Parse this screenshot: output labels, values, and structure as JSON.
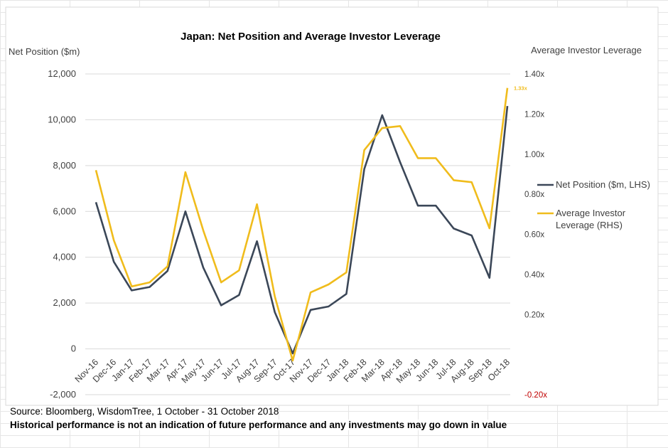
{
  "chart_data": {
    "type": "line",
    "title": "Japan: Net Position and Average Investor Leverage",
    "ylabel_left": "Net Position ($m)",
    "ylabel_right": "Average Investor Leverage",
    "ylim_left": [
      -2000,
      12000
    ],
    "ylim_right": [
      -0.2,
      1.4
    ],
    "yticks_left": [
      "12,000",
      "10,000",
      "8,000",
      "6,000",
      "4,000",
      "2,000",
      "0",
      "-2,000"
    ],
    "yticks_left_values": [
      12000,
      10000,
      8000,
      6000,
      4000,
      2000,
      0,
      -2000
    ],
    "yticks_right": [
      "1.40x",
      "1.20x",
      "1.00x",
      "0.80x",
      "0.60x",
      "0.40x",
      "0.20x",
      "-0.20x"
    ],
    "yticks_right_values": [
      1.4,
      1.2,
      1.0,
      0.8,
      0.6,
      0.4,
      0.2,
      -0.2
    ],
    "grid": true,
    "legend_position": "right",
    "categories": [
      "Nov-16",
      "Dec-16",
      "Jan-17",
      "Feb-17",
      "Mar-17",
      "Apr-17",
      "May-17",
      "Jun-17",
      "Jul-17",
      "Aug-17",
      "Sep-17",
      "Oct-17",
      "Nov-17",
      "Dec-17",
      "Jan-18",
      "Feb-18",
      "Mar-18",
      "Apr-18",
      "May-18",
      "Jun-18",
      "Jul-18",
      "Aug-18",
      "Sep-18",
      "Oct-18"
    ],
    "series": [
      {
        "name": "Net Position ($m, LHS)",
        "axis": "left",
        "color": "#3b4758",
        "values": [
          6400,
          3800,
          2550,
          2700,
          3400,
          6000,
          3550,
          1900,
          2350,
          4700,
          1600,
          -200,
          1700,
          1850,
          2400,
          7850,
          10200,
          8150,
          6250,
          6250,
          5250,
          4950,
          3100,
          10600
        ]
      },
      {
        "name": "Average Investor Leverage (RHS)",
        "axis": "right",
        "color": "#f0bc1c",
        "values": [
          0.92,
          0.57,
          0.34,
          0.36,
          0.44,
          0.91,
          0.62,
          0.36,
          0.42,
          0.75,
          0.29,
          -0.03,
          0.31,
          0.35,
          0.41,
          1.02,
          1.13,
          1.14,
          0.98,
          0.98,
          0.87,
          0.86,
          0.63,
          1.33
        ]
      }
    ],
    "legend_lines": [
      [
        "Net Position ($m, LHS)"
      ],
      [
        "Average Investor",
        "Leverage (RHS)"
      ]
    ],
    "annotation": "1.33x",
    "negative_tick_color": "#c00000"
  },
  "footer": {
    "source": "Source: Bloomberg, WisdomTree, 1 October - 31 October 2018",
    "disclaimer": "Historical performance is not an indication of future performance and any investments may go down in value"
  }
}
